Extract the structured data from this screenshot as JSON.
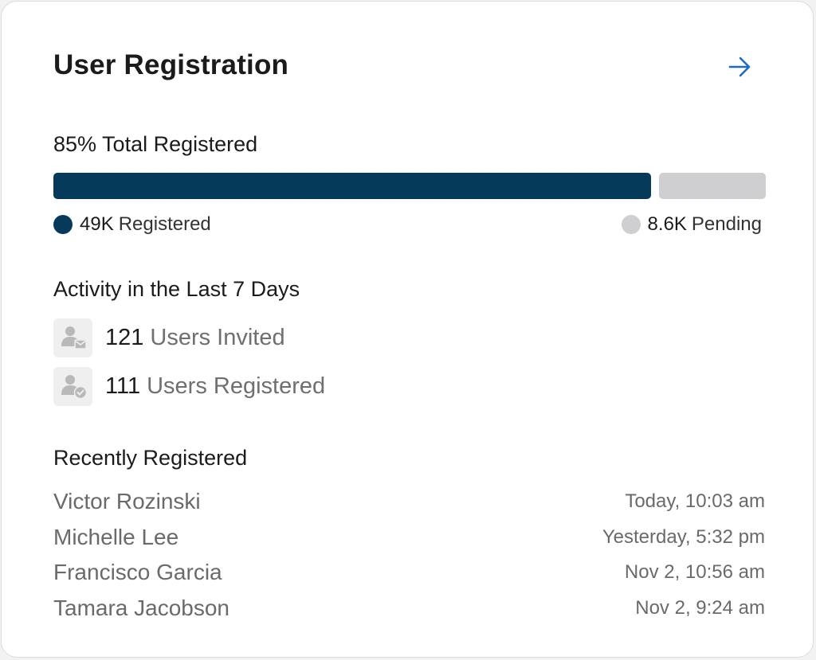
{
  "header": {
    "title": "User Registration",
    "arrow_icon": "arrow-right-icon"
  },
  "registration": {
    "summary_label": "85% Total Registered",
    "progress_fraction": 0.85,
    "registered": {
      "value": "49K",
      "label": "Registered",
      "color": "#053a5a"
    },
    "pending": {
      "value": "8.6K",
      "label": "Pending",
      "color": "#cfcfd1"
    }
  },
  "activity": {
    "heading": "Activity in the Last 7 Days",
    "items": [
      {
        "count": "121",
        "label": "Users Invited",
        "icon": "user-invite-icon"
      },
      {
        "count": "111",
        "label": "Users Registered",
        "icon": "user-registered-icon"
      }
    ]
  },
  "recent": {
    "heading": "Recently Registered",
    "rows": [
      {
        "name": "Victor Rozinski",
        "time": "Today, 10:03 am"
      },
      {
        "name": "Michelle Lee",
        "time": "Yesterday, 5:32 pm"
      },
      {
        "name": "Francisco Garcia",
        "time": "Nov 2, 10:56 am"
      },
      {
        "name": "Tamara Jacobson",
        "time": "Nov 2, 9:24 am"
      }
    ]
  },
  "colors": {
    "accent_link": "#1d6ac4",
    "icon_gray": "#b9b9b9"
  }
}
